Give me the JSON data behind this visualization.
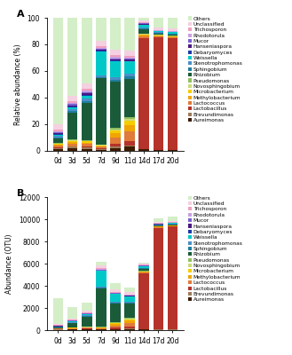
{
  "categories": [
    "0d",
    "3d",
    "5d",
    "7d",
    "9d",
    "11d",
    "14d",
    "17d",
    "20d"
  ],
  "labels": [
    "Aureimonas",
    "Brevundimonas",
    "Lactobacillus",
    "Lactococcus",
    "Methylobacterium",
    "Microbacterium",
    "Novosphingobium",
    "Pseudomonas",
    "Rhizobium",
    "Sphingobium",
    "Stenotrophomonas",
    "Weissella",
    "Debaryomyces",
    "Hanseniaspora",
    "Mucor",
    "Rhodotorula",
    "Trichosporon",
    "Unclassified",
    "Others"
  ],
  "colors": [
    "#3d1c02",
    "#9e7b5a",
    "#b5332a",
    "#e07b39",
    "#f0a500",
    "#f5cc00",
    "#c8dc78",
    "#90c060",
    "#1a5c3a",
    "#1e7fa0",
    "#4a90c8",
    "#00c8c8",
    "#1a3aaa",
    "#4a1880",
    "#7a60d0",
    "#c8a0e0",
    "#f0a0c0",
    "#f5d0e0",
    "#d4eec8"
  ],
  "rel_data": {
    "Aureimonas": [
      1.2,
      2.0,
      1.5,
      0.5,
      2.0,
      3.0,
      1.0,
      0.3,
      0.3
    ],
    "Brevundimonas": [
      0.8,
      1.0,
      1.0,
      0.5,
      1.0,
      1.0,
      0.5,
      0.2,
      0.2
    ],
    "Lactobacillus": [
      0.5,
      0.5,
      1.0,
      1.0,
      2.0,
      3.0,
      83.0,
      85.0,
      84.0
    ],
    "Lactococcus": [
      1.5,
      2.0,
      1.5,
      1.0,
      5.0,
      7.0,
      1.5,
      0.8,
      0.8
    ],
    "Methylobacterium": [
      0.5,
      1.0,
      1.0,
      0.5,
      3.0,
      5.0,
      1.0,
      0.4,
      0.4
    ],
    "Microbacterium": [
      0.5,
      1.0,
      1.0,
      0.5,
      2.0,
      3.0,
      0.5,
      0.3,
      0.3
    ],
    "Novosphingobium": [
      0.3,
      0.5,
      0.5,
      0.3,
      1.0,
      1.5,
      0.3,
      0.2,
      0.2
    ],
    "Pseudomonas": [
      0.3,
      0.5,
      0.5,
      0.3,
      1.0,
      1.5,
      0.3,
      0.2,
      0.2
    ],
    "Rhizobium": [
      3.5,
      20.0,
      28.0,
      50.0,
      35.0,
      28.0,
      3.0,
      1.0,
      1.0
    ],
    "Sphingobium": [
      1.0,
      1.5,
      1.5,
      1.0,
      1.5,
      2.0,
      0.8,
      0.4,
      0.4
    ],
    "Stenotrophomonas": [
      1.2,
      1.5,
      2.0,
      1.5,
      2.0,
      2.0,
      0.8,
      0.4,
      0.4
    ],
    "Weissella": [
      0.8,
      1.0,
      2.0,
      18.0,
      12.0,
      9.0,
      2.0,
      0.8,
      0.8
    ],
    "Debaryomyces": [
      0.3,
      0.5,
      0.5,
      0.3,
      0.5,
      0.5,
      0.2,
      0.1,
      0.1
    ],
    "Hanseniaspora": [
      0.8,
      1.0,
      1.0,
      0.8,
      0.8,
      0.8,
      0.4,
      0.2,
      0.2
    ],
    "Mucor": [
      0.8,
      1.0,
      1.0,
      0.8,
      0.8,
      0.8,
      0.4,
      0.2,
      0.2
    ],
    "Rhodotorula": [
      0.8,
      1.0,
      1.0,
      0.8,
      0.8,
      0.8,
      0.4,
      0.2,
      0.2
    ],
    "Trichosporon": [
      1.0,
      1.5,
      1.5,
      1.0,
      1.5,
      1.5,
      0.6,
      0.4,
      0.4
    ],
    "Unclassified": [
      4.0,
      4.0,
      4.0,
      4.0,
      4.0,
      4.0,
      1.5,
      1.5,
      1.5
    ],
    "Others": [
      80.0,
      58.5,
      49.5,
      17.5,
      24.1,
      24.1,
      1.8,
      7.6,
      8.3
    ]
  },
  "otu_data": {
    "Aureimonas": [
      40,
      60,
      70,
      50,
      80,
      120,
      60,
      30,
      30
    ],
    "Brevundimonas": [
      20,
      30,
      40,
      20,
      40,
      60,
      30,
      15,
      15
    ],
    "Lactobacillus": [
      20,
      20,
      40,
      50,
      100,
      120,
      5000,
      9200,
      9300
    ],
    "Lactococcus": [
      50,
      60,
      60,
      70,
      200,
      350,
      120,
      60,
      60
    ],
    "Methylobacterium": [
      10,
      20,
      30,
      30,
      120,
      200,
      60,
      30,
      30
    ],
    "Microbacterium": [
      10,
      20,
      30,
      30,
      80,
      120,
      30,
      20,
      20
    ],
    "Novosphingobium": [
      10,
      10,
      15,
      20,
      40,
      60,
      20,
      10,
      10
    ],
    "Pseudomonas": [
      10,
      10,
      15,
      20,
      40,
      60,
      20,
      10,
      10
    ],
    "Rhizobium": [
      100,
      400,
      900,
      3500,
      1700,
      1300,
      180,
      60,
      60
    ],
    "Sphingobium": [
      30,
      50,
      60,
      70,
      80,
      100,
      60,
      30,
      30
    ],
    "Stenotrophomonas": [
      30,
      50,
      70,
      70,
      80,
      100,
      60,
      30,
      30
    ],
    "Weissella": [
      20,
      40,
      80,
      1400,
      700,
      450,
      120,
      60,
      60
    ],
    "Debaryomyces": [
      10,
      20,
      20,
      20,
      20,
      20,
      10,
      10,
      10
    ],
    "Hanseniaspora": [
      20,
      30,
      40,
      50,
      40,
      40,
      30,
      15,
      15
    ],
    "Mucor": [
      20,
      30,
      40,
      50,
      40,
      40,
      30,
      15,
      15
    ],
    "Rhodotorula": [
      20,
      30,
      40,
      50,
      40,
      40,
      30,
      15,
      15
    ],
    "Trichosporon": [
      30,
      50,
      60,
      70,
      60,
      60,
      40,
      30,
      30
    ],
    "Unclassified": [
      120,
      120,
      150,
      270,
      200,
      200,
      110,
      120,
      120
    ],
    "Others": [
      2350,
      1030,
      700,
      300,
      560,
      400,
      100,
      350,
      420
    ]
  },
  "ylim_rel": [
    0,
    100
  ],
  "ylim_otu": [
    0,
    12000
  ],
  "yticks_rel": [
    0,
    20,
    40,
    60,
    80,
    100
  ],
  "yticks_otu": [
    0,
    2000,
    4000,
    6000,
    8000,
    10000,
    12000
  ],
  "ylabel_rel": "Relative abundance (%)",
  "ylabel_otu": "Abundance (OTU)"
}
